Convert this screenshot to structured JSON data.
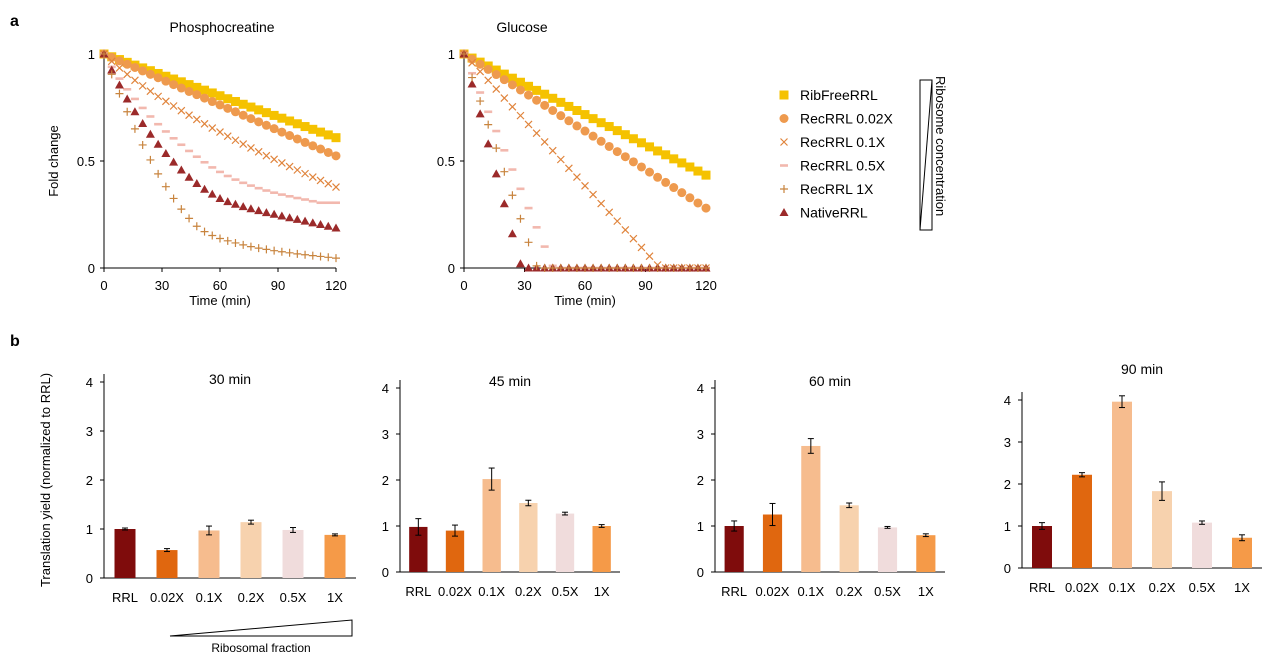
{
  "panels": {
    "a": "a",
    "b": "b"
  },
  "legend": {
    "items": [
      "RibFreeRRL",
      "RecRRL 0.02X",
      "RecRRL 0.1X",
      "RecRRL 0.5X",
      "RecRRL 1X",
      "NativeRRL"
    ],
    "bracket_label": "Ribosome concentration"
  },
  "ribosomal_fraction_label": "Ribosomal fraction",
  "colors": {
    "RibFreeRRL": "#F5C200",
    "RecRRL 0.02X": "#EE9A4E",
    "RecRRL 0.1X": "#E0843C",
    "RecRRL 0.5X": "#F2B8AE",
    "RecRRL 1X": "#C8843E",
    "NativeRRL": "#9B2A2A",
    "bars": [
      "#7F0C0C",
      "#E0670F",
      "#F6BC8E",
      "#F7D2AE",
      "#F0DCDC",
      "#F59A48"
    ]
  },
  "chart_data": [
    {
      "type": "scatter",
      "title": "Phosphocreatine",
      "xlabel": "Time (min)",
      "ylabel": "Fold change",
      "xlim": [
        0,
        120
      ],
      "ylim": [
        0,
        1
      ],
      "xticks": [
        0,
        30,
        60,
        90,
        120
      ],
      "yticks": [
        0,
        0.5,
        1
      ],
      "x": [
        0,
        4,
        8,
        12,
        16,
        20,
        24,
        28,
        32,
        36,
        40,
        44,
        48,
        52,
        56,
        60,
        64,
        68,
        72,
        76,
        80,
        84,
        88,
        92,
        96,
        100,
        104,
        108,
        112,
        116,
        120
      ],
      "series": [
        {
          "name": "RibFreeRRL",
          "marker": "square",
          "values": [
            1.0,
            0.987,
            0.974,
            0.961,
            0.948,
            0.935,
            0.922,
            0.909,
            0.896,
            0.883,
            0.87,
            0.857,
            0.844,
            0.831,
            0.818,
            0.805,
            0.791,
            0.778,
            0.765,
            0.752,
            0.739,
            0.726,
            0.713,
            0.7,
            0.687,
            0.674,
            0.661,
            0.648,
            0.635,
            0.622,
            0.609
          ]
        },
        {
          "name": "RecRRL 0.02X",
          "marker": "circle",
          "values": [
            1.0,
            0.984,
            0.968,
            0.952,
            0.937,
            0.921,
            0.905,
            0.889,
            0.873,
            0.857,
            0.841,
            0.825,
            0.81,
            0.794,
            0.778,
            0.762,
            0.746,
            0.73,
            0.714,
            0.698,
            0.683,
            0.667,
            0.651,
            0.635,
            0.619,
            0.603,
            0.587,
            0.571,
            0.556,
            0.54,
            0.524
          ]
        },
        {
          "name": "RecRRL 0.1X",
          "marker": "x",
          "values": [
            1.0,
            0.966,
            0.935,
            0.905,
            0.877,
            0.851,
            0.826,
            0.802,
            0.779,
            0.757,
            0.735,
            0.714,
            0.694,
            0.674,
            0.654,
            0.635,
            0.616,
            0.597,
            0.579,
            0.561,
            0.543,
            0.525,
            0.508,
            0.491,
            0.474,
            0.458,
            0.441,
            0.425,
            0.409,
            0.394,
            0.378
          ]
        },
        {
          "name": "RecRRL 0.5X",
          "marker": "dash",
          "values": [
            1.0,
            0.94,
            0.885,
            0.835,
            0.79,
            0.748,
            0.708,
            0.672,
            0.638,
            0.606,
            0.576,
            0.547,
            0.52,
            0.494,
            0.47,
            0.449,
            0.43,
            0.413,
            0.398,
            0.385,
            0.373,
            0.362,
            0.352,
            0.343,
            0.335,
            0.327,
            0.32,
            0.312,
            0.305,
            0.305,
            0.305
          ]
        },
        {
          "name": "NativeRRL",
          "marker": "triangle",
          "values": [
            1.0,
            0.925,
            0.855,
            0.79,
            0.73,
            0.675,
            0.625,
            0.578,
            0.535,
            0.495,
            0.458,
            0.424,
            0.395,
            0.368,
            0.345,
            0.325,
            0.31,
            0.298,
            0.287,
            0.277,
            0.268,
            0.259,
            0.251,
            0.243,
            0.235,
            0.227,
            0.219,
            0.211,
            0.203,
            0.195,
            0.187
          ]
        },
        {
          "name": "RecRRL 1X",
          "marker": "plus",
          "values": [
            1.0,
            0.905,
            0.815,
            0.73,
            0.65,
            0.575,
            0.505,
            0.44,
            0.38,
            0.325,
            0.275,
            0.232,
            0.195,
            0.17,
            0.152,
            0.138,
            0.127,
            0.117,
            0.108,
            0.1,
            0.093,
            0.087,
            0.081,
            0.076,
            0.071,
            0.066,
            0.062,
            0.058,
            0.054,
            0.05,
            0.046
          ]
        }
      ]
    },
    {
      "type": "scatter",
      "title": "Glucose",
      "xlabel": "Time (min)",
      "ylabel": "",
      "xlim": [
        0,
        120
      ],
      "ylim": [
        0,
        1
      ],
      "xticks": [
        0,
        30,
        60,
        90,
        120
      ],
      "yticks": [
        0,
        0.5,
        1
      ],
      "x": [
        0,
        4,
        8,
        12,
        16,
        20,
        24,
        28,
        32,
        36,
        40,
        44,
        48,
        52,
        56,
        60,
        64,
        68,
        72,
        76,
        80,
        84,
        88,
        92,
        96,
        100,
        104,
        108,
        112,
        116,
        120
      ],
      "series": [
        {
          "name": "RibFreeRRL",
          "marker": "square",
          "values": [
            1.0,
            0.981,
            0.962,
            0.944,
            0.925,
            0.906,
            0.887,
            0.868,
            0.849,
            0.83,
            0.812,
            0.793,
            0.774,
            0.755,
            0.736,
            0.717,
            0.698,
            0.679,
            0.661,
            0.642,
            0.623,
            0.604,
            0.585,
            0.566,
            0.547,
            0.529,
            0.51,
            0.491,
            0.472,
            0.453,
            0.434
          ]
        },
        {
          "name": "RecRRL 0.02X",
          "marker": "circle",
          "values": [
            1.0,
            0.976,
            0.952,
            0.928,
            0.904,
            0.88,
            0.856,
            0.832,
            0.808,
            0.784,
            0.76,
            0.736,
            0.712,
            0.688,
            0.664,
            0.64,
            0.616,
            0.592,
            0.568,
            0.544,
            0.52,
            0.496,
            0.472,
            0.448,
            0.424,
            0.4,
            0.376,
            0.352,
            0.328,
            0.304,
            0.28
          ]
        },
        {
          "name": "RecRRL 0.1X",
          "marker": "x",
          "values": [
            1.0,
            0.959,
            0.918,
            0.877,
            0.836,
            0.794,
            0.753,
            0.712,
            0.671,
            0.63,
            0.589,
            0.548,
            0.507,
            0.466,
            0.425,
            0.384,
            0.343,
            0.301,
            0.26,
            0.219,
            0.178,
            0.137,
            0.096,
            0.055,
            0.014,
            0,
            0,
            0,
            0,
            0,
            0
          ]
        },
        {
          "name": "RecRRL 0.5X",
          "marker": "dash",
          "values": [
            1.0,
            0.91,
            0.82,
            0.73,
            0.64,
            0.55,
            0.46,
            0.37,
            0.28,
            0.19,
            0.1,
            0.01,
            0,
            0,
            0,
            0,
            0,
            0,
            0,
            0,
            0,
            0,
            0,
            0,
            0,
            0,
            0,
            0,
            0,
            0,
            0
          ]
        },
        {
          "name": "NativeRRL",
          "marker": "triangle",
          "values": [
            1.0,
            0.86,
            0.72,
            0.58,
            0.44,
            0.3,
            0.16,
            0.02,
            0,
            0,
            0,
            0,
            0,
            0,
            0,
            0,
            0,
            0,
            0,
            0,
            0,
            0,
            0,
            0,
            0,
            0,
            0,
            0,
            0,
            0,
            0
          ]
        },
        {
          "name": "RecRRL 1X",
          "marker": "plus",
          "values": [
            1.0,
            0.89,
            0.78,
            0.67,
            0.56,
            0.45,
            0.34,
            0.23,
            0.12,
            0.01,
            0,
            0,
            0,
            0,
            0,
            0,
            0,
            0,
            0,
            0,
            0,
            0,
            0,
            0,
            0,
            0,
            0,
            0,
            0,
            0,
            0
          ]
        }
      ]
    },
    {
      "type": "bar",
      "title": "30 min",
      "ylabel": "Translation yield (normalized to RRL)",
      "categories": [
        "RRL",
        "0.02X",
        "0.1X",
        "0.2X",
        "0.5X",
        "1X"
      ],
      "values": [
        1.0,
        0.57,
        0.97,
        1.14,
        0.98,
        0.88
      ],
      "errors": [
        0.02,
        0.03,
        0.09,
        0.04,
        0.05,
        0.02
      ],
      "ylim": [
        0,
        4
      ],
      "yticks": [
        0,
        1,
        2,
        3,
        4
      ]
    },
    {
      "type": "bar",
      "title": "45 min",
      "ylabel": "",
      "categories": [
        "RRL",
        "0.02X",
        "0.1X",
        "0.2X",
        "0.5X",
        "1X"
      ],
      "values": [
        0.98,
        0.9,
        2.02,
        1.5,
        1.27,
        1.0
      ],
      "errors": [
        0.18,
        0.12,
        0.24,
        0.06,
        0.03,
        0.03
      ],
      "ylim": [
        0,
        4
      ],
      "yticks": [
        0,
        1,
        2,
        3,
        4
      ]
    },
    {
      "type": "bar",
      "title": "60 min",
      "ylabel": "",
      "categories": [
        "RRL",
        "0.02X",
        "0.1X",
        "0.2X",
        "0.5X",
        "1X"
      ],
      "values": [
        1.0,
        1.25,
        2.74,
        1.45,
        0.97,
        0.8
      ],
      "errors": [
        0.11,
        0.24,
        0.16,
        0.05,
        0.02,
        0.03
      ],
      "ylim": [
        0,
        4
      ],
      "yticks": [
        0,
        1,
        2,
        3,
        4
      ]
    },
    {
      "type": "bar",
      "title": "90 min",
      "ylabel": "",
      "categories": [
        "RRL",
        "0.02X",
        "0.1X",
        "0.2X",
        "0.5X",
        "1X"
      ],
      "values": [
        1.0,
        2.22,
        3.96,
        1.83,
        1.08,
        0.72
      ],
      "errors": [
        0.08,
        0.05,
        0.14,
        0.22,
        0.04,
        0.07
      ],
      "ylim": [
        0,
        4
      ],
      "yticks": [
        0,
        1,
        2,
        3,
        4
      ]
    }
  ]
}
